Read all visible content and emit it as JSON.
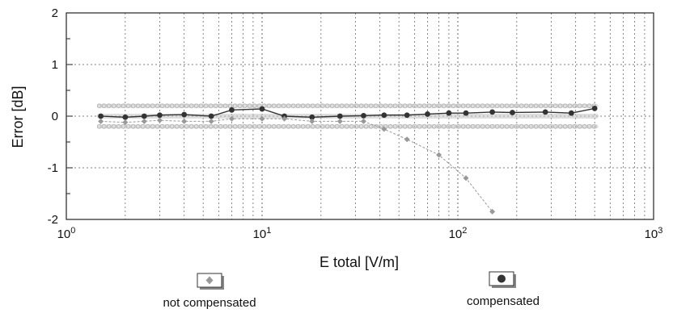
{
  "chart_data": {
    "type": "scatter",
    "title": "",
    "xlabel": "E total [V/m]",
    "ylabel": "Error [dB]",
    "xscale": "log",
    "xlim": [
      1,
      1000
    ],
    "ylim": [
      -2,
      2
    ],
    "x_ticks": [
      {
        "base": "10",
        "exp": "0"
      },
      {
        "base": "10",
        "exp": "1"
      },
      {
        "base": "10",
        "exp": "2"
      },
      {
        "base": "10",
        "exp": "3"
      }
    ],
    "y_ticks": [
      "-2",
      "-1",
      "0",
      "1",
      "2"
    ],
    "grid": true,
    "colors": {
      "compensated": "#333333",
      "not_compensated": "#999999",
      "limit_band": "#c4c4c4",
      "grid": "#555555"
    },
    "series": [
      {
        "name": "compensated",
        "x": [
          1.5,
          2.0,
          2.5,
          3.0,
          4.0,
          5.5,
          7.0,
          10.0,
          13.0,
          18.0,
          25.0,
          33.0,
          42.0,
          55.0,
          70.0,
          90.0,
          110.0,
          150.0,
          190.0,
          280.0,
          380.0,
          500.0
        ],
        "y": [
          0.0,
          -0.02,
          0.0,
          0.02,
          0.03,
          0.0,
          0.12,
          0.14,
          0.0,
          -0.02,
          0.0,
          0.01,
          0.02,
          0.02,
          0.04,
          0.06,
          0.06,
          0.08,
          0.07,
          0.08,
          0.06,
          0.15
        ]
      },
      {
        "name": "not compensated",
        "x": [
          1.5,
          2.0,
          2.5,
          3.0,
          4.0,
          5.5,
          7.0,
          10.0,
          13.0,
          18.0,
          25.0,
          33.0,
          42.0,
          55.0,
          80.0,
          110.0,
          150.0
        ],
        "y": [
          -0.1,
          -0.12,
          -0.1,
          -0.08,
          -0.1,
          -0.1,
          -0.05,
          -0.05,
          -0.05,
          -0.1,
          -0.1,
          -0.1,
          -0.25,
          -0.45,
          -0.75,
          -1.2,
          -1.85
        ]
      }
    ],
    "legend": [
      {
        "label": "not compensated",
        "series": "not compensated"
      },
      {
        "label": "compensated",
        "series": "compensated"
      }
    ],
    "legend_placement": "bottom"
  }
}
